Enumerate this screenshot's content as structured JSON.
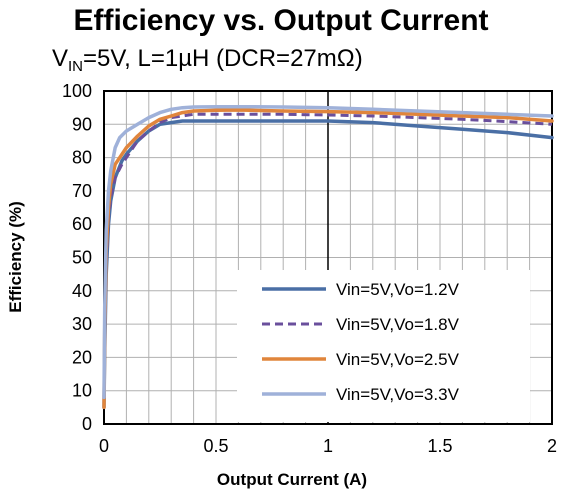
{
  "chart_data": {
    "type": "line",
    "title": "Efficiency vs. Output Current",
    "subtitle": {
      "prefix": "V",
      "subscript": "IN",
      "suffix": "=5V, L=1µH (DCR=27mΩ)"
    },
    "xlabel": "Output Current (A)",
    "ylabel": "Efficiency (%)",
    "xlim": [
      0,
      2
    ],
    "ylim": [
      0,
      100
    ],
    "xticks": [
      "0",
      "0.5",
      "1",
      "1.5",
      "2"
    ],
    "yticks": [
      "0",
      "10",
      "20",
      "30",
      "40",
      "50",
      "60",
      "70",
      "80",
      "90",
      "100"
    ],
    "grid": true,
    "legend_position": "bottom-right",
    "series": [
      {
        "name": "Vin=5V,Vo=1.2V",
        "color": "#4a6fa5",
        "dash": "solid",
        "x": [
          0,
          0.003,
          0.01,
          0.02,
          0.03,
          0.05,
          0.08,
          0.1,
          0.15,
          0.2,
          0.25,
          0.3,
          0.35,
          0.4,
          0.5,
          0.6,
          0.8,
          1.0,
          1.2,
          1.4,
          1.6,
          1.8,
          2.0
        ],
        "y": [
          5,
          22,
          45,
          60,
          67,
          74,
          79,
          81,
          85,
          88,
          90,
          90.5,
          91,
          91,
          91,
          91,
          91,
          91,
          90.5,
          89.5,
          88.5,
          87.5,
          86
        ]
      },
      {
        "name": "Vin=5V,Vo=1.8V",
        "color": "#6a4f9c",
        "dash": "dashed",
        "x": [
          0,
          0.003,
          0.01,
          0.02,
          0.03,
          0.05,
          0.08,
          0.1,
          0.15,
          0.2,
          0.25,
          0.3,
          0.35,
          0.4,
          0.5,
          0.6,
          0.8,
          1.0,
          1.2,
          1.4,
          1.6,
          1.8,
          2.0
        ],
        "y": [
          6,
          25,
          48,
          62,
          68,
          74,
          78,
          80,
          85,
          88,
          90.5,
          92,
          92.5,
          93,
          93,
          93,
          93,
          92.8,
          92.5,
          92,
          91.5,
          90.8,
          90
        ]
      },
      {
        "name": "Vin=5V,Vo=2.5V",
        "color": "#e0853c",
        "dash": "solid",
        "x": [
          0,
          0.003,
          0.01,
          0.02,
          0.03,
          0.05,
          0.08,
          0.1,
          0.15,
          0.2,
          0.25,
          0.3,
          0.35,
          0.4,
          0.5,
          0.6,
          0.8,
          1.0,
          1.2,
          1.4,
          1.6,
          1.8,
          2.0
        ],
        "y": [
          5,
          28,
          52,
          65,
          72,
          78,
          81,
          83,
          86.5,
          89.5,
          91.5,
          92.5,
          93.5,
          94,
          94.2,
          94.3,
          94,
          93.8,
          93.5,
          93,
          92.5,
          92,
          91
        ]
      },
      {
        "name": "Vin=5V,Vo=3.3V",
        "color": "#9fb1d9",
        "dash": "solid",
        "x": [
          0,
          0.003,
          0.01,
          0.02,
          0.03,
          0.05,
          0.07,
          0.1,
          0.15,
          0.2,
          0.25,
          0.3,
          0.35,
          0.4,
          0.5,
          0.6,
          0.8,
          1.0,
          1.2,
          1.4,
          1.6,
          1.8,
          2.0
        ],
        "y": [
          8,
          35,
          58,
          70,
          76,
          83,
          86,
          88,
          90,
          92,
          93.5,
          94.5,
          95,
          95.2,
          95.3,
          95.3,
          95.2,
          95,
          94.5,
          94,
          93.5,
          93,
          92.5
        ]
      }
    ]
  }
}
